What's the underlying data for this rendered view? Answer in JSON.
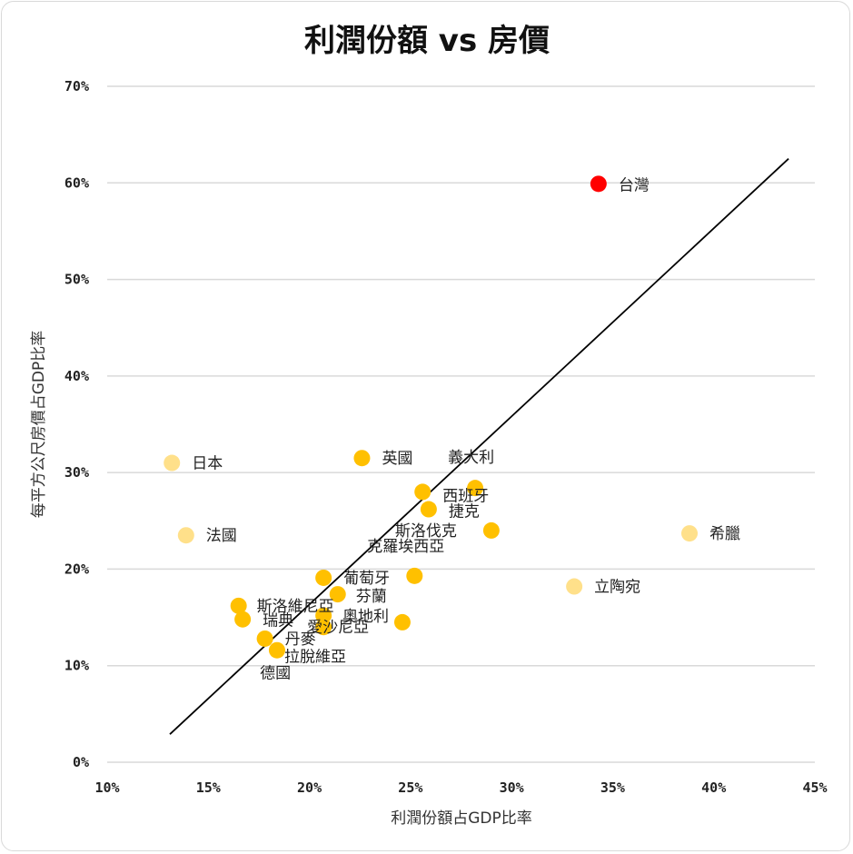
{
  "chart_data": {
    "type": "scatter",
    "title": "利潤份額 vs 房價",
    "xlabel": "利潤份額占GDP比率",
    "ylabel": "每平方公尺房價占GDP比率",
    "xlim": [
      10,
      45
    ],
    "ylim": [
      0,
      70
    ],
    "xticks": [
      "10%",
      "15%",
      "20%",
      "25%",
      "30%",
      "35%",
      "40%",
      "45%"
    ],
    "yticks": [
      "0%",
      "10%",
      "20%",
      "30%",
      "40%",
      "50%",
      "60%",
      "70%"
    ],
    "grid": "horizontal",
    "colors": {
      "normal": "#FFC000",
      "light": "#FFE08A",
      "highlight": "#FF0000",
      "trend": "#000000",
      "grid": "#d9d9d9"
    },
    "points": [
      {
        "label": "台灣",
        "x": 34.3,
        "y": 59.9,
        "style": "highlight"
      },
      {
        "label": "日本",
        "x": 13.2,
        "y": 31.0,
        "style": "light"
      },
      {
        "label": "法國",
        "x": 13.9,
        "y": 23.5,
        "style": "light"
      },
      {
        "label": "英國",
        "x": 22.6,
        "y": 31.5,
        "style": "normal"
      },
      {
        "label": "義大利",
        "x": 28.2,
        "y": 28.4,
        "style": "normal"
      },
      {
        "label": "西班牙",
        "x": 25.6,
        "y": 28.0,
        "style": "normal"
      },
      {
        "label": "捷克",
        "x": 25.9,
        "y": 26.2,
        "style": "normal"
      },
      {
        "label": "斯洛伐克",
        "x": 29.0,
        "y": 24.0,
        "style": "normal"
      },
      {
        "label": "希臘",
        "x": 38.8,
        "y": 23.7,
        "style": "light"
      },
      {
        "label": "立陶宛",
        "x": 33.1,
        "y": 18.2,
        "style": "light"
      },
      {
        "label": "克羅埃西亞",
        "x": 25.2,
        "y": 19.3,
        "style": "normal"
      },
      {
        "label": "葡萄牙",
        "x": 20.7,
        "y": 19.1,
        "style": "normal"
      },
      {
        "label": "芬蘭",
        "x": 21.4,
        "y": 17.4,
        "style": "normal"
      },
      {
        "label": "斯洛維尼亞",
        "x": 16.5,
        "y": 16.2,
        "style": "normal"
      },
      {
        "label": "瑞典",
        "x": 16.7,
        "y": 14.8,
        "style": "normal"
      },
      {
        "label": "奧地利",
        "x": 24.6,
        "y": 14.5,
        "style": "normal"
      },
      {
        "label": "愛沙尼亞",
        "x": 20.7,
        "y": 14.0,
        "style": "normal"
      },
      {
        "label": "德國",
        "x": 20.7,
        "y": 15.2,
        "style": "normal"
      },
      {
        "label": "丹麥",
        "x": 17.8,
        "y": 12.8,
        "style": "normal"
      },
      {
        "label": "拉脫維亞",
        "x": 18.4,
        "y": 11.6,
        "style": "normal"
      }
    ],
    "trendline": {
      "x": [
        13.1,
        43.7
      ],
      "y": [
        2.9,
        62.5
      ]
    }
  }
}
